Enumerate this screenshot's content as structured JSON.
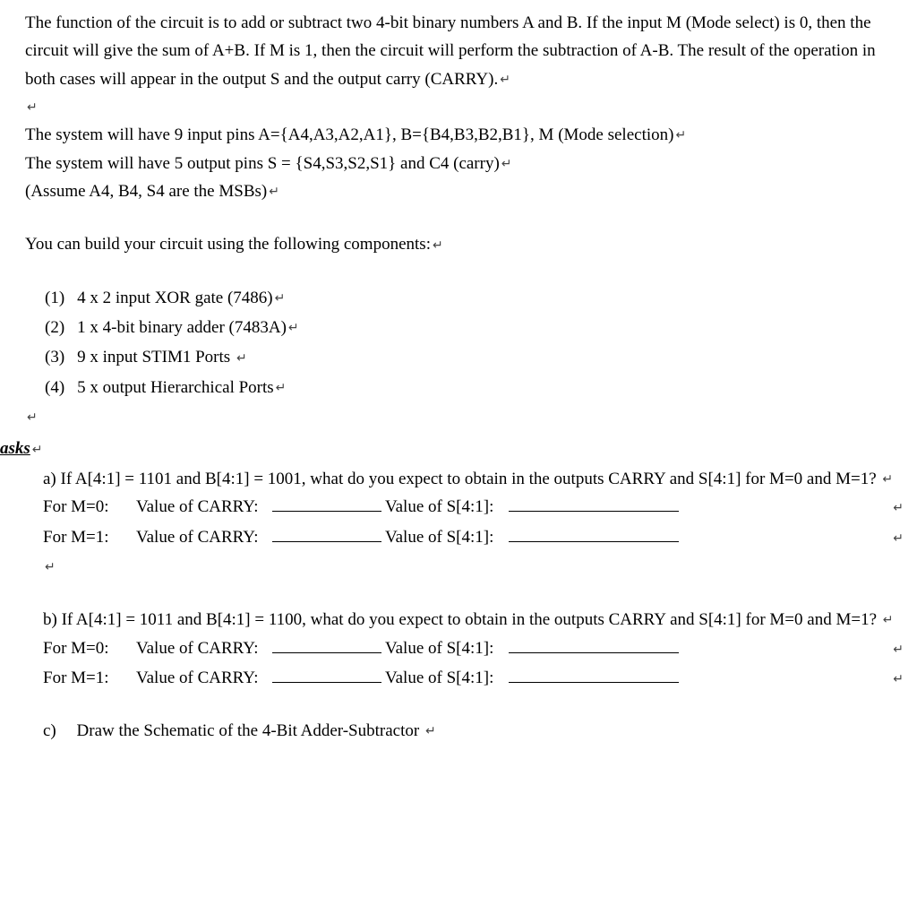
{
  "intro": {
    "p1": "The function of the circuit is to add or subtract two 4-bit binary numbers A and B. If the input M (Mode select) is 0, then the circuit will give the sum of A+B. If M is 1, then the circuit will perform the subtraction of A-B. The result of the operation in both cases will appear in the output S and the output carry (CARRY).",
    "p2": "The system will have 9 input pins A={A4,A3,A2,A1}, B={B4,B3,B2,B1}, M (Mode selection)",
    "p3": "The system will have 5 output pins S = {S4,S3,S2,S1} and C4 (carry)",
    "p4": "(Assume A4, B4, S4 are the MSBs)",
    "p5": "You can build your circuit using the following components:"
  },
  "components": [
    {
      "num": "(1)",
      "text": "4 x 2 input XOR gate (7486)"
    },
    {
      "num": "(2)",
      "text": "1 x 4-bit binary adder (7483A)"
    },
    {
      "num": "(3)",
      "text": "9 x input STIM1 Ports "
    },
    {
      "num": "(4)",
      "text": "5 x output Hierarchical Ports"
    }
  ],
  "tasks_heading": "asks",
  "part_a": {
    "q": "a) If A[4:1] = 1101 and B[4:1] = 1001, what do you expect to obtain in the outputs CARRY and S[4:1] for M=0 and M=1? ",
    "m0": "For M=0:",
    "m1": "For M=1:",
    "carry_label": "Value of CARRY:",
    "s_label": "Value of S[4:1]:"
  },
  "part_b": {
    "q": "b) If A[4:1] = 1011 and B[4:1] = 1100, what do you expect to obtain in the outputs CARRY and S[4:1] for M=0 and M=1? ",
    "m0": "For M=0:",
    "m1": "For M=1:",
    "carry_label": "Value of CARRY:",
    "s_label": "Value of S[4:1]:"
  },
  "part_c": {
    "label": "c)",
    "text": "Draw the Schematic of the 4-Bit Adder-Subtractor "
  },
  "return_symbol": "↵"
}
